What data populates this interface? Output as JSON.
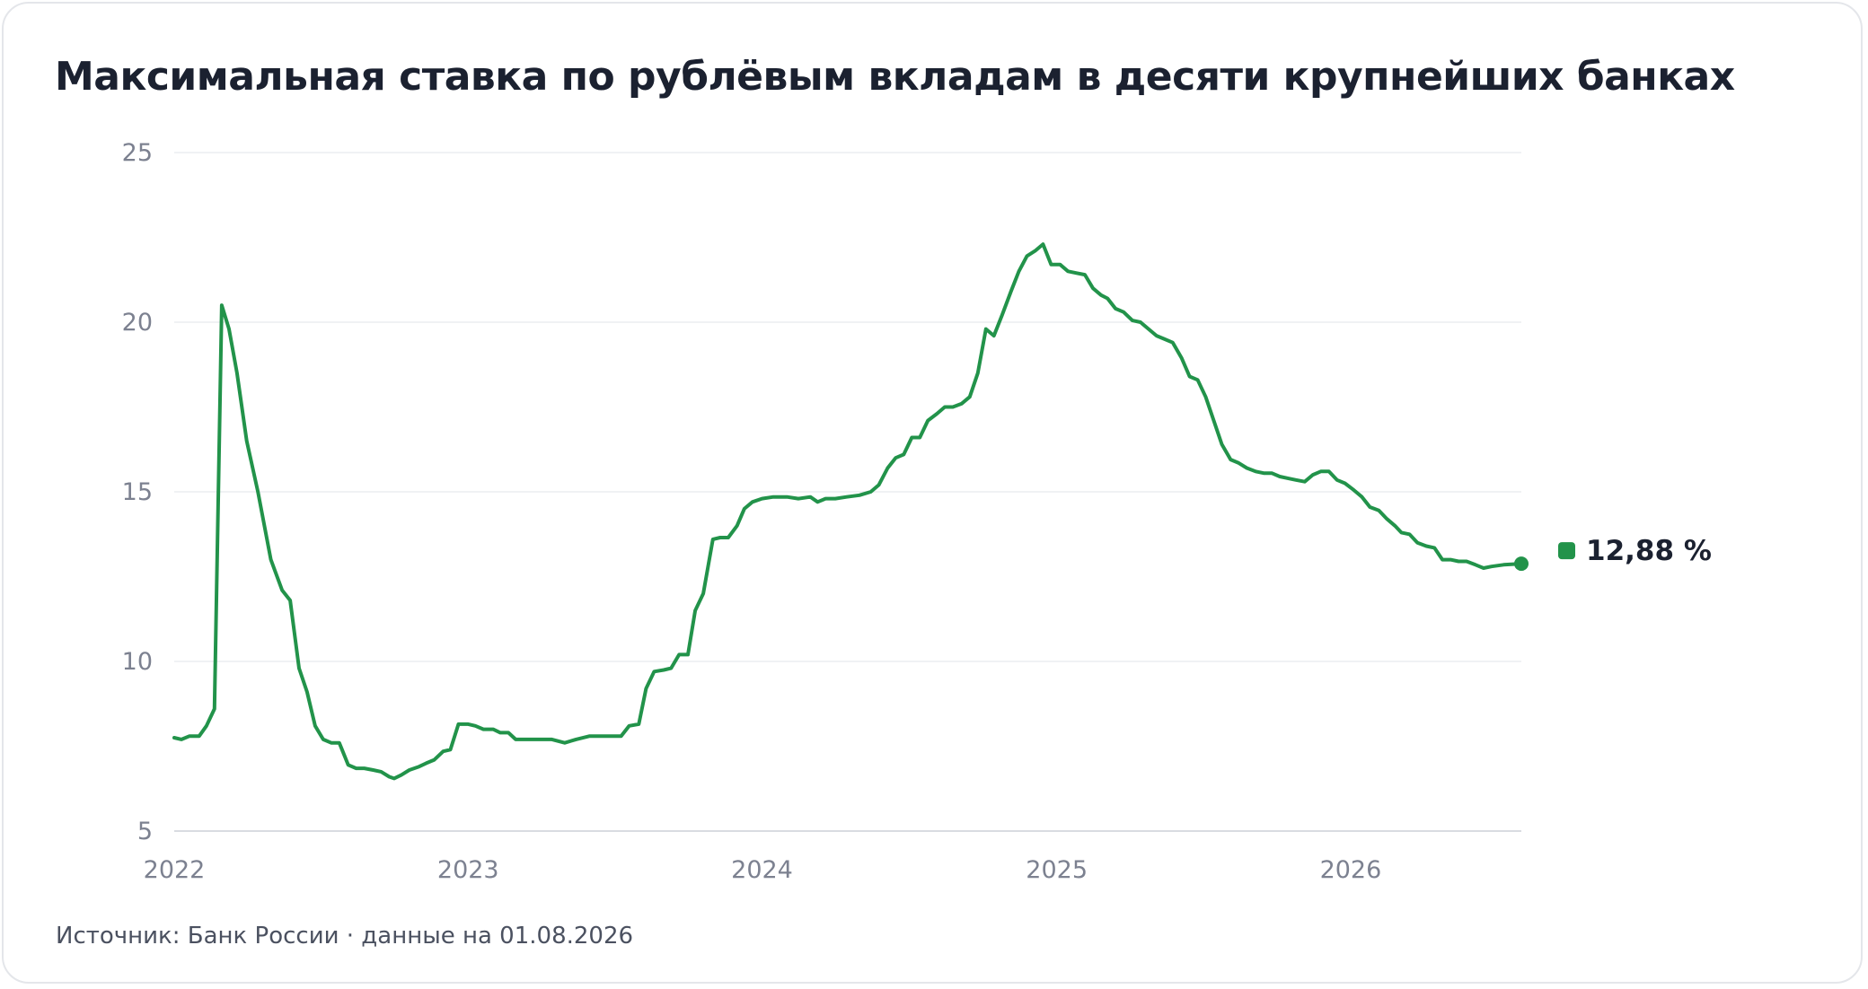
{
  "header": {
    "title": "Максимальная ставка по рублёвым вкладам в десяти крупнейших банках"
  },
  "footer": {
    "source": "Источник: Банк России · данные на 01.08.2026"
  },
  "colors": {
    "line": "#22934a",
    "grid": "#ebedf0",
    "axis": "#d9dce1"
  },
  "chart_data": {
    "type": "line",
    "title": "Максимальная ставка по рублёвым вкладам в десяти крупнейших банках",
    "xlabel": "",
    "ylabel": "",
    "xlim": [
      "2022-01-01",
      "2026-08-01"
    ],
    "ylim": [
      5,
      25
    ],
    "yticks": [
      5,
      10,
      15,
      20,
      25
    ],
    "xticks": [
      "2022",
      "2023",
      "2024",
      "2025",
      "2026"
    ],
    "grid": true,
    "legend": "none",
    "last_value_label": "12,88 %",
    "series": [
      {
        "points": [
          [
            "2022-01-01",
            7.75
          ],
          [
            "2022-01-10",
            7.7
          ],
          [
            "2022-01-20",
            7.8
          ],
          [
            "2022-02-01",
            7.8
          ],
          [
            "2022-02-10",
            8.1
          ],
          [
            "2022-02-20",
            8.6
          ],
          [
            "2022-03-01",
            20.5
          ],
          [
            "2022-03-10",
            19.8
          ],
          [
            "2022-03-20",
            18.5
          ],
          [
            "2022-04-01",
            16.5
          ],
          [
            "2022-04-15",
            15.0
          ],
          [
            "2022-05-01",
            13.0
          ],
          [
            "2022-05-15",
            12.1
          ],
          [
            "2022-05-25",
            11.8
          ],
          [
            "2022-06-05",
            9.8
          ],
          [
            "2022-06-15",
            9.1
          ],
          [
            "2022-06-25",
            8.1
          ],
          [
            "2022-07-05",
            7.7
          ],
          [
            "2022-07-15",
            7.6
          ],
          [
            "2022-07-25",
            7.6
          ],
          [
            "2022-08-05",
            6.95
          ],
          [
            "2022-08-15",
            6.85
          ],
          [
            "2022-08-25",
            6.85
          ],
          [
            "2022-09-05",
            6.8
          ],
          [
            "2022-09-15",
            6.75
          ],
          [
            "2022-09-25",
            6.6
          ],
          [
            "2022-10-01",
            6.55
          ],
          [
            "2022-10-10",
            6.65
          ],
          [
            "2022-10-20",
            6.8
          ],
          [
            "2022-11-01",
            6.9
          ],
          [
            "2022-11-10",
            7.0
          ],
          [
            "2022-11-20",
            7.1
          ],
          [
            "2022-12-01",
            7.35
          ],
          [
            "2022-12-10",
            7.4
          ],
          [
            "2022-12-20",
            8.15
          ],
          [
            "2023-01-01",
            8.15
          ],
          [
            "2023-01-10",
            8.1
          ],
          [
            "2023-01-20",
            8.0
          ],
          [
            "2023-02-01",
            8.0
          ],
          [
            "2023-02-10",
            7.9
          ],
          [
            "2023-02-20",
            7.9
          ],
          [
            "2023-03-01",
            7.7
          ],
          [
            "2023-03-15",
            7.7
          ],
          [
            "2023-04-01",
            7.7
          ],
          [
            "2023-04-15",
            7.7
          ],
          [
            "2023-05-01",
            7.6
          ],
          [
            "2023-05-15",
            7.7
          ],
          [
            "2023-06-01",
            7.8
          ],
          [
            "2023-06-15",
            7.8
          ],
          [
            "2023-07-01",
            7.8
          ],
          [
            "2023-07-10",
            7.8
          ],
          [
            "2023-07-20",
            8.1
          ],
          [
            "2023-08-01",
            8.15
          ],
          [
            "2023-08-10",
            9.2
          ],
          [
            "2023-08-20",
            9.7
          ],
          [
            "2023-09-01",
            9.75
          ],
          [
            "2023-09-10",
            9.8
          ],
          [
            "2023-09-20",
            10.2
          ],
          [
            "2023-10-01",
            10.2
          ],
          [
            "2023-10-10",
            11.5
          ],
          [
            "2023-10-20",
            12.0
          ],
          [
            "2023-11-01",
            13.6
          ],
          [
            "2023-11-10",
            13.65
          ],
          [
            "2023-11-20",
            13.65
          ],
          [
            "2023-12-01",
            14.0
          ],
          [
            "2023-12-10",
            14.5
          ],
          [
            "2023-12-20",
            14.7
          ],
          [
            "2024-01-01",
            14.8
          ],
          [
            "2024-01-15",
            14.85
          ],
          [
            "2024-02-01",
            14.85
          ],
          [
            "2024-02-15",
            14.8
          ],
          [
            "2024-03-01",
            14.85
          ],
          [
            "2024-03-10",
            14.7
          ],
          [
            "2024-03-20",
            14.8
          ],
          [
            "2024-04-01",
            14.8
          ],
          [
            "2024-04-15",
            14.85
          ],
          [
            "2024-05-01",
            14.9
          ],
          [
            "2024-05-15",
            15.0
          ],
          [
            "2024-05-25",
            15.2
          ],
          [
            "2024-06-05",
            15.7
          ],
          [
            "2024-06-15",
            16.0
          ],
          [
            "2024-06-25",
            16.1
          ],
          [
            "2024-07-05",
            16.6
          ],
          [
            "2024-07-15",
            16.6
          ],
          [
            "2024-07-25",
            17.1
          ],
          [
            "2024-08-05",
            17.3
          ],
          [
            "2024-08-15",
            17.5
          ],
          [
            "2024-08-25",
            17.5
          ],
          [
            "2024-09-05",
            17.6
          ],
          [
            "2024-09-15",
            17.8
          ],
          [
            "2024-09-25",
            18.5
          ],
          [
            "2024-10-05",
            19.8
          ],
          [
            "2024-10-15",
            19.6
          ],
          [
            "2024-10-25",
            20.2
          ],
          [
            "2024-11-05",
            20.9
          ],
          [
            "2024-11-15",
            21.5
          ],
          [
            "2024-11-25",
            21.95
          ],
          [
            "2024-12-05",
            22.1
          ],
          [
            "2024-12-15",
            22.3
          ],
          [
            "2024-12-25",
            21.7
          ],
          [
            "2025-01-05",
            21.7
          ],
          [
            "2025-01-15",
            21.5
          ],
          [
            "2025-01-25",
            21.45
          ],
          [
            "2025-02-05",
            21.4
          ],
          [
            "2025-02-15",
            21.0
          ],
          [
            "2025-02-25",
            20.8
          ],
          [
            "2025-03-05",
            20.7
          ],
          [
            "2025-03-15",
            20.4
          ],
          [
            "2025-03-25",
            20.3
          ],
          [
            "2025-04-05",
            20.05
          ],
          [
            "2025-04-15",
            20.0
          ],
          [
            "2025-04-25",
            19.8
          ],
          [
            "2025-05-05",
            19.6
          ],
          [
            "2025-05-15",
            19.5
          ],
          [
            "2025-05-25",
            19.4
          ],
          [
            "2025-06-05",
            18.95
          ],
          [
            "2025-06-15",
            18.4
          ],
          [
            "2025-06-25",
            18.3
          ],
          [
            "2025-07-05",
            17.8
          ],
          [
            "2025-07-15",
            17.1
          ],
          [
            "2025-07-25",
            16.4
          ],
          [
            "2025-08-05",
            15.95
          ],
          [
            "2025-08-15",
            15.85
          ],
          [
            "2025-08-25",
            15.7
          ],
          [
            "2025-09-05",
            15.6
          ],
          [
            "2025-09-15",
            15.55
          ],
          [
            "2025-09-25",
            15.55
          ],
          [
            "2025-10-05",
            15.45
          ],
          [
            "2025-10-15",
            15.4
          ],
          [
            "2025-10-25",
            15.35
          ],
          [
            "2025-11-05",
            15.3
          ],
          [
            "2025-11-15",
            15.5
          ],
          [
            "2025-11-25",
            15.6
          ],
          [
            "2025-12-05",
            15.6
          ],
          [
            "2025-12-15",
            15.35
          ],
          [
            "2025-12-25",
            15.25
          ],
          [
            "2026-01-05",
            15.05
          ],
          [
            "2026-01-15",
            14.85
          ],
          [
            "2026-01-25",
            14.55
          ],
          [
            "2026-02-05",
            14.45
          ],
          [
            "2026-02-15",
            14.2
          ],
          [
            "2026-02-25",
            14.0
          ],
          [
            "2026-03-05",
            13.8
          ],
          [
            "2026-03-15",
            13.75
          ],
          [
            "2026-03-25",
            13.5
          ],
          [
            "2026-04-05",
            13.4
          ],
          [
            "2026-04-15",
            13.35
          ],
          [
            "2026-04-25",
            13.0
          ],
          [
            "2026-05-05",
            13.0
          ],
          [
            "2026-05-15",
            12.95
          ],
          [
            "2026-05-25",
            12.95
          ],
          [
            "2026-06-05",
            12.85
          ],
          [
            "2026-06-15",
            12.75
          ],
          [
            "2026-06-25",
            12.8
          ],
          [
            "2026-07-10",
            12.85
          ],
          [
            "2026-08-01",
            12.88
          ]
        ]
      }
    ]
  }
}
